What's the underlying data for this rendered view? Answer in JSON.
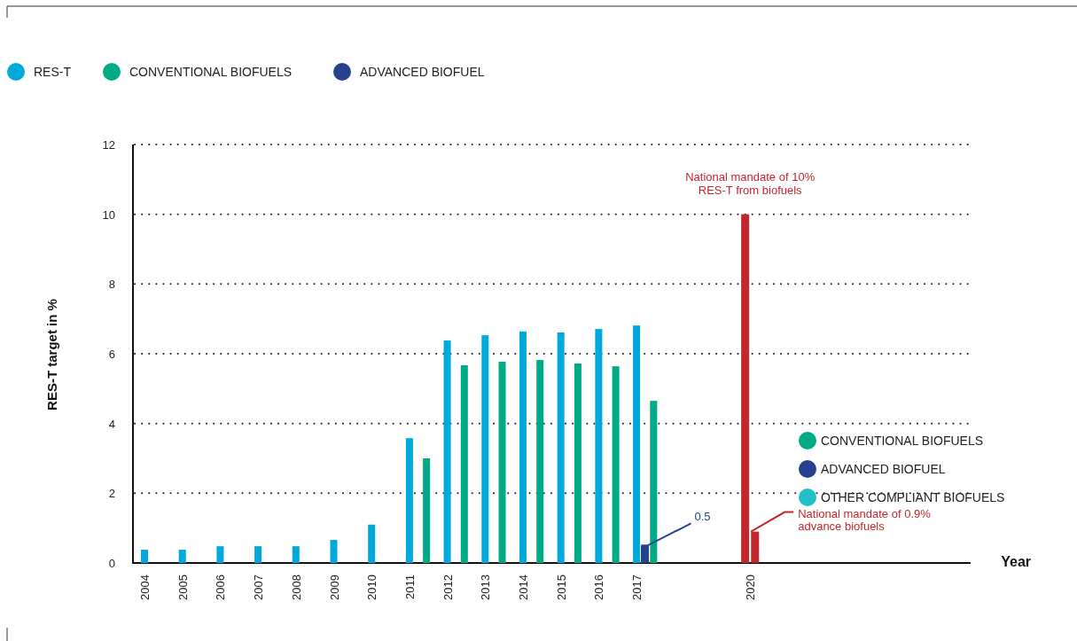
{
  "chart_data": {
    "type": "bar",
    "ylabel": "RES-T target in %",
    "categories": [
      "2004",
      "2005",
      "2006",
      "2007",
      "2008",
      "2009",
      "2010",
      "2011",
      "2012",
      "2013",
      "2014",
      "2015",
      "2016",
      "2017",
      null,
      null,
      "2020"
    ],
    "series": [
      {
        "name": "RES-T",
        "color": "#00a9dc",
        "values": [
          0.38,
          0.38,
          0.48,
          0.48,
          0.48,
          0.66,
          1.1,
          3.58,
          6.38,
          6.53,
          6.64,
          6.61,
          6.71,
          6.81,
          null,
          null,
          null
        ]
      },
      {
        "name": "CONVENTIONAL BIOFUELS",
        "color": "#00aa85",
        "values": [
          null,
          null,
          null,
          null,
          null,
          null,
          null,
          3.0,
          5.67,
          5.77,
          5.82,
          5.72,
          5.64,
          4.65,
          null,
          null,
          null
        ]
      },
      {
        "name": "ADVANCED BIOFUEL",
        "color": "#27418f",
        "values": [
          null,
          null,
          null,
          null,
          null,
          null,
          null,
          null,
          null,
          null,
          null,
          null,
          null,
          0.5,
          null,
          null,
          null
        ],
        "value_labels": [
          null,
          null,
          null,
          null,
          null,
          null,
          null,
          null,
          null,
          null,
          null,
          null,
          null,
          "0.5",
          null,
          null,
          null
        ]
      },
      {
        "color": "#c1272d",
        "values": [
          null,
          null,
          null,
          null,
          null,
          null,
          null,
          null,
          null,
          null,
          null,
          null,
          null,
          null,
          null,
          null,
          10
        ]
      },
      {
        "color": "#c1272d",
        "values": [
          null,
          null,
          null,
          null,
          null,
          null,
          null,
          null,
          null,
          null,
          null,
          null,
          null,
          null,
          null,
          null,
          0.9
        ]
      }
    ],
    "ylim": [
      0,
      12
    ],
    "yticks": [
      0,
      2,
      4,
      6,
      8,
      10,
      12
    ],
    "grid": "y",
    "legend": "top left",
    "annotations": [
      {
        "text": "National mandate of 10%\nRES-T from biofuels",
        "x": "2020",
        "y": 10
      },
      {
        "text": "National mandate of 0.9%\nadvance biofuels",
        "x": "2020",
        "y": 0.9
      },
      "Year",
      "CONVENTIONAL BIOFUELS",
      "ADVANCED BIOFUEL",
      "OTHER COMPLIANT BIOFUELS"
    ]
  }
}
